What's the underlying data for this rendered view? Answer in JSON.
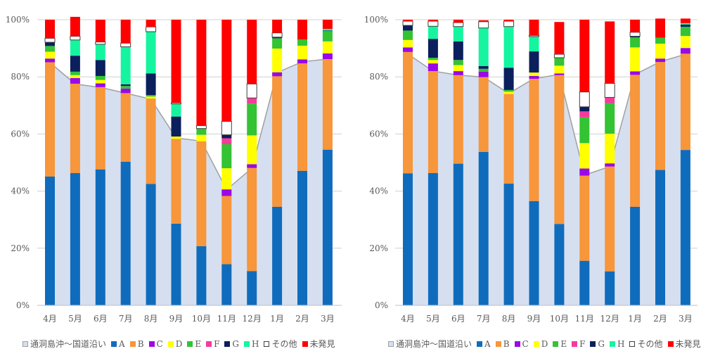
{
  "chart_data": [
    {
      "type": "bar",
      "stacked": true,
      "title": "",
      "xlabel": "",
      "ylabel": "",
      "ylim": [
        0,
        100
      ],
      "yticks": [
        "0%",
        "20%",
        "40%",
        "60%",
        "80%",
        "100%"
      ],
      "grid": true,
      "legend_position": "bottom",
      "categories": [
        "4月",
        "5月",
        "6月",
        "7月",
        "8月",
        "9月",
        "10月",
        "11月",
        "12月",
        "1月",
        "2月",
        "3月"
      ],
      "area_series": {
        "name": "通洞島沖～国道沿い",
        "values": [
          85.0,
          77.5,
          76.3,
          74.3,
          72.2,
          58.6,
          57.5,
          40.5,
          48.0,
          81.5,
          85.3,
          86.2
        ]
      },
      "series": [
        {
          "name": "A",
          "values": [
            45.1,
            46.3,
            47.6,
            50.3,
            42.5,
            28.6,
            20.7,
            14.4,
            12.0,
            34.5,
            47.1,
            54.5
          ]
        },
        {
          "name": "B",
          "values": [
            40.0,
            31.3,
            28.8,
            24.0,
            29.9,
            29.7,
            36.7,
            23.9,
            36.1,
            45.7,
            37.6,
            31.7
          ]
        },
        {
          "name": "C",
          "values": [
            1.3,
            2.0,
            1.3,
            1.6,
            0.0,
            0.0,
            0.0,
            2.3,
            1.3,
            1.4,
            1.4,
            2.0
          ]
        },
        {
          "name": "D",
          "values": [
            2.4,
            1.0,
            1.2,
            0.0,
            0.7,
            0.8,
            2.3,
            7.4,
            10.1,
            8.3,
            4.8,
            4.2
          ]
        },
        {
          "name": "E",
          "values": [
            2.0,
            1.2,
            1.4,
            0.9,
            0.5,
            0.0,
            2.2,
            8.4,
            11.1,
            3.6,
            2.2,
            3.6
          ]
        },
        {
          "name": "F",
          "values": [
            0.0,
            0.0,
            0.0,
            0.0,
            0.0,
            0.0,
            0.0,
            2.1,
            2.0,
            0.0,
            0.0,
            0.0
          ]
        },
        {
          "name": "G",
          "values": [
            1.3,
            5.6,
            5.6,
            0.6,
            7.6,
            7.0,
            0.0,
            1.2,
            0.0,
            0.4,
            0.0,
            0.2
          ]
        },
        {
          "name": "H",
          "values": [
            0.0,
            5.5,
            5.5,
            13.1,
            14.6,
            4.4,
            0.0,
            0.0,
            0.0,
            0.0,
            0.0,
            0.6
          ]
        },
        {
          "name": "その他",
          "values": [
            1.4,
            1.3,
            0.8,
            1.3,
            1.7,
            0.4,
            1.0,
            4.7,
            4.9,
            1.5,
            0.0,
            0.0
          ]
        },
        {
          "name": "未発見",
          "values": [
            6.5,
            6.8,
            7.8,
            8.2,
            2.5,
            29.1,
            37.1,
            35.6,
            22.5,
            4.6,
            6.9,
            3.2
          ]
        }
      ]
    },
    {
      "type": "bar",
      "stacked": true,
      "title": "",
      "xlabel": "",
      "ylabel": "",
      "ylim": [
        0,
        100
      ],
      "yticks": [
        "0%",
        "20%",
        "40%",
        "60%",
        "80%",
        "100%"
      ],
      "grid": true,
      "legend_position": "bottom",
      "categories": [
        "4月",
        "5月",
        "6月",
        "7月",
        "8月",
        "9月",
        "10月",
        "11月",
        "12月",
        "1月",
        "2月",
        "3月"
      ],
      "area_series": {
        "name": "通洞島沖～国道沿い",
        "values": [
          88.0,
          82.0,
          80.6,
          79.9,
          74.2,
          79.4,
          80.8,
          45.6,
          48.6,
          80.8,
          85.3,
          87.9
        ]
      },
      "series": [
        {
          "name": "A",
          "values": [
            46.2,
            46.3,
            49.6,
            53.7,
            42.6,
            36.5,
            28.5,
            15.6,
            11.9,
            34.5,
            47.4,
            54.4
          ]
        },
        {
          "name": "B",
          "values": [
            42.5,
            35.7,
            31.0,
            26.2,
            31.4,
            42.8,
            52.1,
            29.8,
            36.7,
            46.2,
            37.8,
            33.7
          ]
        },
        {
          "name": "C",
          "values": [
            1.6,
            2.7,
            1.4,
            1.9,
            0.0,
            1.0,
            0.6,
            2.5,
            1.1,
            1.2,
            1.2,
            2.0
          ]
        },
        {
          "name": "D",
          "values": [
            2.6,
            1.2,
            2.1,
            0.0,
            0.8,
            1.2,
            2.7,
            8.9,
            10.4,
            8.4,
            5.2,
            4.2
          ]
        },
        {
          "name": "E",
          "values": [
            3.3,
            0.8,
            1.8,
            1.0,
            0.6,
            0.0,
            2.8,
            9.0,
            10.7,
            3.5,
            2.1,
            3.2
          ]
        },
        {
          "name": "F",
          "values": [
            0.0,
            0.0,
            0.0,
            0.0,
            0.0,
            0.0,
            0.0,
            2.1,
            2.0,
            0.0,
            0.0,
            0.0
          ]
        },
        {
          "name": "G",
          "values": [
            1.8,
            6.6,
            6.5,
            1.0,
            7.8,
            7.4,
            0.0,
            1.6,
            0.0,
            0.4,
            0.0,
            0.8
          ]
        },
        {
          "name": "H",
          "values": [
            0.0,
            4.4,
            5.2,
            13.3,
            14.4,
            5.2,
            0.0,
            0.0,
            0.0,
            0.0,
            0.0,
            0.5
          ]
        },
        {
          "name": "その他",
          "values": [
            1.5,
            1.8,
            1.4,
            2.2,
            1.9,
            0.4,
            1.2,
            5.2,
            4.9,
            1.4,
            0.0,
            0.0
          ]
        },
        {
          "name": "未発見",
          "values": [
            0.5,
            0.5,
            1.0,
            0.5,
            0.5,
            5.5,
            11.3,
            25.3,
            21.7,
            4.4,
            6.7,
            1.6
          ]
        }
      ]
    }
  ],
  "colors": {
    "通洞島沖～国道沿い": "#d6dff0",
    "A": "#0f6cbd",
    "B": "#f7963a",
    "C": "#9b08e8",
    "D": "#ffff00",
    "E": "#33c333",
    "F": "#f43c9c",
    "G": "#0a1f5c",
    "H": "#15f5a0",
    "その他": "#ffffff",
    "未発見": "#ff0000",
    "grid": "#d0d0d0",
    "area_line": "#a0a0a0"
  },
  "legend": [
    {
      "label": "通洞島沖～国道沿い",
      "key": "通洞島沖～国道沿い"
    },
    {
      "label": "A",
      "key": "A"
    },
    {
      "label": "B",
      "key": "B"
    },
    {
      "label": "C",
      "key": "C"
    },
    {
      "label": "D",
      "key": "D"
    },
    {
      "label": "E",
      "key": "E"
    },
    {
      "label": "F",
      "key": "F"
    },
    {
      "label": "G",
      "key": "G"
    },
    {
      "label": "H",
      "key": "H"
    },
    {
      "label": "その他",
      "key": "その他"
    },
    {
      "label": "未発見",
      "key": "未発見"
    }
  ]
}
